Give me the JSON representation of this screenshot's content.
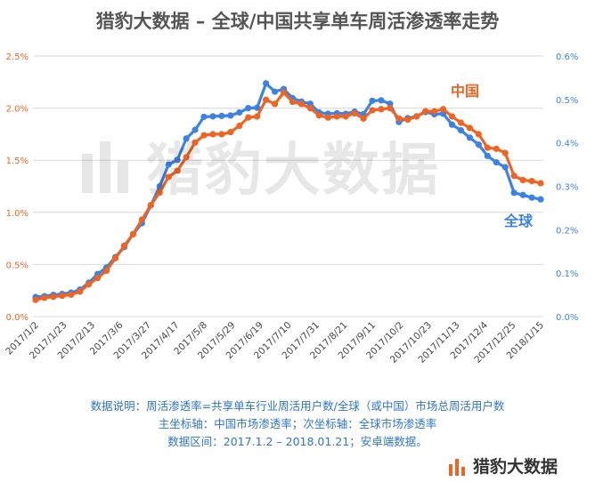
{
  "header": {
    "title": "猎豹大数据 – 全球/中国共享单车周活渗透率走势"
  },
  "notes": {
    "line1": "数据说明：周活渗透率=共享单车行业周活用户数/全球（或中国）市场总周活用户数",
    "line2": "主坐标轴：中国市场渗透率；次坐标轴：全球市场渗透率",
    "line3": "数据区间：2017.1.2 – 2018.01.21；安卓端数据。"
  },
  "brand": {
    "name": "猎豹大数据",
    "watermark": "猎豹大数据",
    "icon": "bars-logo-icon"
  },
  "colors": {
    "china": "#ef6422",
    "global": "#3b82e6",
    "grid": "#d9d9d9",
    "tick_left": "#ef6422",
    "tick_right": "#3b82e6"
  },
  "chart_data": {
    "type": "line",
    "title": "猎豹大数据 – 全球/中国共享单车周活渗透率走势",
    "x_tick_labels": [
      "2017/1/2",
      "2017/1/23",
      "2017/2/13",
      "2017/3/6",
      "2017/3/27",
      "2017/4/17",
      "2017/5/8",
      "2017/5/29",
      "2017/6/19",
      "2017/7/10",
      "2017/7/31",
      "2017/8/21",
      "2017/9/11",
      "2017/10/2",
      "2017/10/23",
      "2017/11/13",
      "2017/12/4",
      "2017/12/25",
      "2018/1/15"
    ],
    "y_left": {
      "ylim": [
        0,
        2.5
      ],
      "ticks": [
        "0.0%",
        "0.5%",
        "1.0%",
        "1.5%",
        "2.0%",
        "2.5%"
      ]
    },
    "y_right": {
      "ylim": [
        0,
        0.6
      ],
      "ticks": [
        "0.0%",
        "0.1%",
        "0.2%",
        "0.3%",
        "0.4%",
        "0.5%",
        "0.6%"
      ]
    },
    "grid": true,
    "series": [
      {
        "name": "中国",
        "axis": "left",
        "values": [
          0.16,
          0.18,
          0.19,
          0.2,
          0.21,
          0.24,
          0.31,
          0.37,
          0.44,
          0.56,
          0.68,
          0.79,
          0.93,
          1.07,
          1.19,
          1.34,
          1.4,
          1.53,
          1.67,
          1.74,
          1.75,
          1.75,
          1.77,
          1.83,
          1.91,
          1.92,
          2.08,
          2.04,
          2.15,
          2.06,
          2.04,
          2.0,
          1.93,
          1.91,
          1.92,
          1.92,
          1.95,
          1.9,
          1.98,
          1.99,
          2.0,
          1.9,
          1.89,
          1.92,
          1.97,
          1.97,
          1.99,
          1.92,
          1.86,
          1.81,
          1.75,
          1.62,
          1.61,
          1.57,
          1.35,
          1.31,
          1.3,
          1.28
        ]
      },
      {
        "name": "全球",
        "axis": "right",
        "values": [
          0.045,
          0.047,
          0.05,
          0.052,
          0.055,
          0.062,
          0.078,
          0.098,
          0.113,
          0.137,
          0.16,
          0.19,
          0.215,
          0.256,
          0.3,
          0.35,
          0.361,
          0.41,
          0.43,
          0.46,
          0.461,
          0.462,
          0.463,
          0.47,
          0.48,
          0.481,
          0.537,
          0.518,
          0.524,
          0.503,
          0.495,
          0.49,
          0.47,
          0.467,
          0.468,
          0.467,
          0.472,
          0.466,
          0.497,
          0.498,
          0.49,
          0.448,
          0.457,
          0.461,
          0.471,
          0.466,
          0.467,
          0.442,
          0.429,
          0.412,
          0.396,
          0.37,
          0.355,
          0.344,
          0.285,
          0.28,
          0.274,
          0.27
        ]
      }
    ],
    "annotations": [
      {
        "text": "中国",
        "series": "中国"
      },
      {
        "text": "全球",
        "series": "全球"
      }
    ]
  }
}
